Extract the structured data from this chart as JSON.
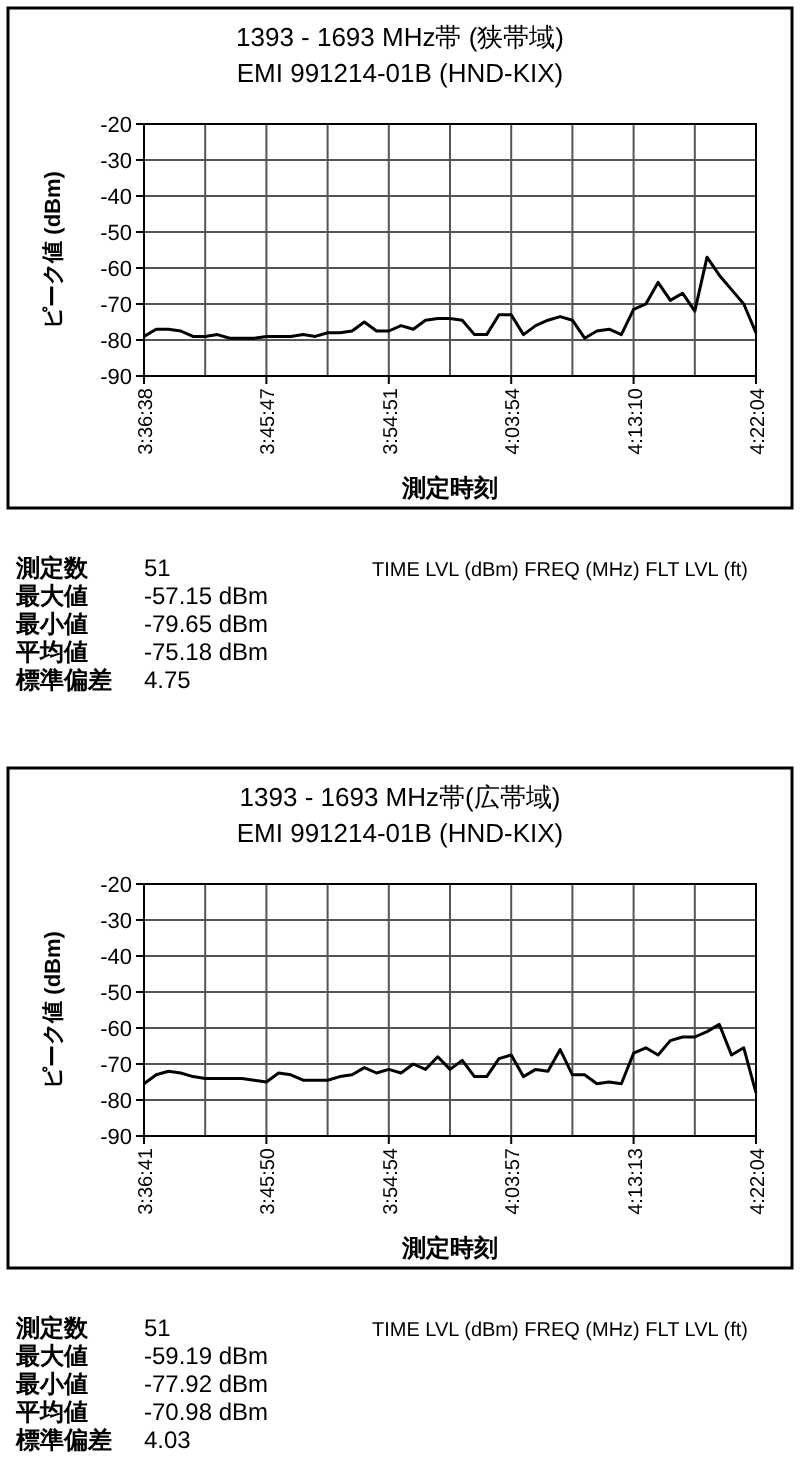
{
  "chart_data": [
    {
      "type": "line",
      "title": "1393 - 1693 MHz帯 (狭帯域)",
      "subtitle": "EMI 991214-01B (HND-KIX)",
      "xlabel": "測定時刻",
      "ylabel": "ピーク値 (dBm)",
      "categories": [
        "3:36:38",
        null,
        null,
        null,
        null,
        null,
        null,
        null,
        null,
        null,
        "3:45:47",
        null,
        null,
        null,
        null,
        null,
        null,
        null,
        null,
        null,
        "3:54:51",
        null,
        null,
        null,
        null,
        null,
        null,
        null,
        null,
        null,
        "4:03:54",
        null,
        null,
        null,
        null,
        null,
        null,
        null,
        null,
        null,
        "4:13:10",
        null,
        null,
        null,
        null,
        null,
        null,
        null,
        null,
        null,
        "4:22:04"
      ],
      "series": [
        {
          "color": "#000000",
          "values": [
            -79,
            -77,
            -77,
            -77.5,
            -79,
            -79,
            -78.5,
            -79.5,
            -79.5,
            -79.5,
            -79,
            -79,
            -79,
            -78.5,
            -79,
            -78,
            -78,
            -77.5,
            -75,
            -77.5,
            -77.5,
            -76,
            -77,
            -74.5,
            -74,
            -74,
            -74.5,
            -78.5,
            -78.5,
            -73,
            -73,
            -78.5,
            -76,
            -74.5,
            -73.5,
            -74.5,
            -79.5,
            -77.5,
            -77,
            -78.5,
            -71.5,
            -70,
            -64,
            -69,
            -67,
            -72,
            -57,
            -62,
            -66,
            -70,
            -78
          ]
        }
      ],
      "ylim": [
        -90,
        -20
      ],
      "yticks": [
        -90,
        -80,
        -70,
        -60,
        -50,
        -40,
        -30,
        -20
      ],
      "grid": true,
      "annotations": [
        "測定数 51",
        "最大値 -57.15 dBm",
        "最小値 -79.65 dBm",
        "平均値 -75.18 dBm",
        "標準偏差 4.75",
        "TIME LVL (dBm) FREQ (MHz) FLT LVL (ft)"
      ]
    },
    {
      "type": "line",
      "title": "1393 - 1693 MHz帯(広帯域)",
      "subtitle": "EMI 991214-01B (HND-KIX)",
      "xlabel": "測定時刻",
      "ylabel": "ピーク値 (dBm)",
      "categories": [
        "3:36:41",
        null,
        null,
        null,
        null,
        null,
        null,
        null,
        null,
        null,
        "3:45:50",
        null,
        null,
        null,
        null,
        null,
        null,
        null,
        null,
        null,
        "3:54:54",
        null,
        null,
        null,
        null,
        null,
        null,
        null,
        null,
        null,
        "4:03:57",
        null,
        null,
        null,
        null,
        null,
        null,
        null,
        null,
        null,
        "4:13:13",
        null,
        null,
        null,
        null,
        null,
        null,
        null,
        null,
        null,
        "4:22:04"
      ],
      "series": [
        {
          "color": "#000000",
          "values": [
            -75.5,
            -73,
            -72,
            -72.5,
            -73.5,
            -74,
            -74,
            -74,
            -74,
            -74.5,
            -75,
            -72.5,
            -73,
            -74.5,
            -74.5,
            -74.5,
            -73.5,
            -73,
            -71,
            -72.5,
            -71.5,
            -72.5,
            -70,
            -71.5,
            -68,
            -71.5,
            -69,
            -73.5,
            -73.5,
            -68.5,
            -67.5,
            -73.5,
            -71.5,
            -72,
            -66,
            -73,
            -73,
            -75.5,
            -75,
            -75.5,
            -67,
            -65.5,
            -67.5,
            -63.5,
            -62.5,
            -62.5,
            -61,
            -59,
            -67.5,
            -65.5,
            -78
          ]
        }
      ],
      "ylim": [
        -90,
        -20
      ],
      "yticks": [
        -90,
        -80,
        -70,
        -60,
        -50,
        -40,
        -30,
        -20
      ],
      "grid": true,
      "annotations": [
        "測定数 51",
        "最大値 -59.19 dBm",
        "最小値 -77.92 dBm",
        "平均値 -70.98 dBm",
        "標準偏差 4.03",
        "TIME LVL (dBm) FREQ (MHz) FLT LVL (ft)"
      ]
    }
  ]
}
